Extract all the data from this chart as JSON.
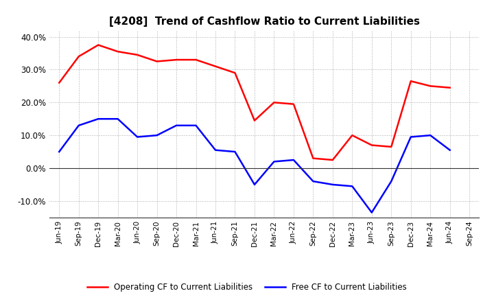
{
  "title": "[4208]  Trend of Cashflow Ratio to Current Liabilities",
  "x_labels": [
    "Jun-19",
    "Sep-19",
    "Dec-19",
    "Mar-20",
    "Jun-20",
    "Sep-20",
    "Dec-20",
    "Mar-21",
    "Jun-21",
    "Sep-21",
    "Dec-21",
    "Mar-22",
    "Jun-22",
    "Sep-22",
    "Dec-22",
    "Mar-23",
    "Jun-23",
    "Sep-23",
    "Dec-23",
    "Mar-24",
    "Jun-24",
    "Sep-24"
  ],
  "operating_cf": [
    26.0,
    34.0,
    37.5,
    35.5,
    34.5,
    32.5,
    33.0,
    33.0,
    31.0,
    29.0,
    14.5,
    20.0,
    19.5,
    3.0,
    2.5,
    10.0,
    7.0,
    6.5,
    26.5,
    25.0,
    24.5,
    null
  ],
  "free_cf": [
    5.0,
    13.0,
    15.0,
    15.0,
    9.5,
    10.0,
    13.0,
    13.0,
    5.5,
    5.0,
    -5.0,
    2.0,
    2.5,
    -4.0,
    -5.0,
    -5.5,
    -13.5,
    -4.0,
    9.5,
    10.0,
    5.5,
    null
  ],
  "ylim": [
    -15.0,
    42.0
  ],
  "yticks": [
    -10.0,
    0.0,
    10.0,
    20.0,
    30.0,
    40.0
  ],
  "operating_color": "#ff0000",
  "free_color": "#0000ff",
  "background_color": "#ffffff",
  "grid_color": "#aaaaaa",
  "title_fontsize": 11,
  "legend_labels": [
    "Operating CF to Current Liabilities",
    "Free CF to Current Liabilities"
  ]
}
